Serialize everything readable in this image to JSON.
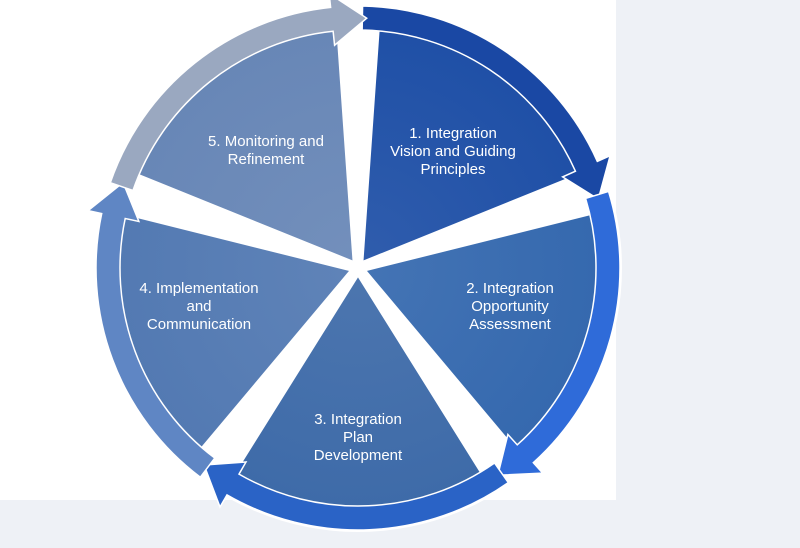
{
  "cycle": {
    "steps": [
      {
        "lines": [
          "1. Integration",
          "Vision and Guiding",
          "Principles"
        ],
        "segment_color": "#1e4fa6",
        "arrow_color": "#1a48a4"
      },
      {
        "lines": [
          "2. Integration",
          "Opportunity",
          "Assessment"
        ],
        "segment_color": "#3468ae",
        "arrow_color": "#2f6bd9"
      },
      {
        "lines": [
          "3. Integration",
          "Plan",
          "Development"
        ],
        "segment_color": "#3d6aa8",
        "arrow_color": "#2a63c6"
      },
      {
        "lines": [
          "4. Implementation",
          "and",
          "Communication"
        ],
        "segment_color": "#5279b2",
        "arrow_color": "#5f86c4"
      },
      {
        "lines": [
          "5. Monitoring and",
          "Refinement"
        ],
        "segment_color": "#6786b6",
        "arrow_color": "#9aa8c0"
      }
    ]
  }
}
